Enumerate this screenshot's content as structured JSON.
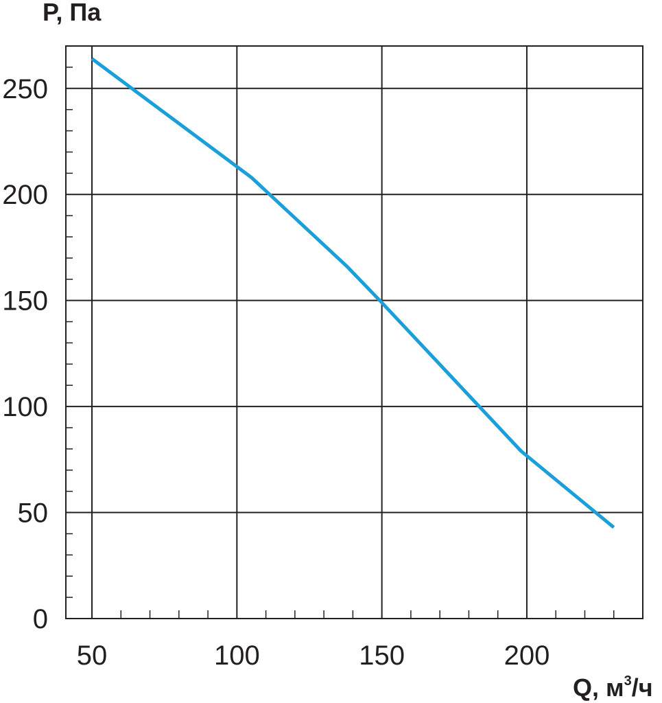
{
  "chart_data": {
    "type": "line",
    "ylabel": "P, Па",
    "xlabel_main": "Q, м",
    "xlabel_sup": "3",
    "xlabel_tail": "/ч",
    "xlim": [
      41,
      240
    ],
    "ylim": [
      0,
      270
    ],
    "x_ticks": [
      50,
      100,
      150,
      200
    ],
    "x_tick_labels": [
      "50",
      "100",
      "150",
      "200"
    ],
    "y_ticks": [
      0,
      50,
      100,
      150,
      200,
      250
    ],
    "y_tick_labels": [
      "0",
      "50",
      "100",
      "150",
      "200",
      "250"
    ],
    "x_minor_step": 10,
    "y_minor_step": 10,
    "grid": true,
    "series": [
      {
        "color": "#1a9fd9",
        "points": [
          [
            50,
            264
          ],
          [
            105,
            208
          ],
          [
            138,
            166
          ],
          [
            150,
            149
          ],
          [
            198,
            79
          ],
          [
            230,
            43
          ]
        ]
      }
    ]
  }
}
